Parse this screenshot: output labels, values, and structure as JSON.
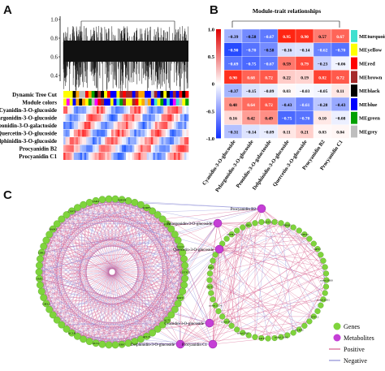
{
  "panels": {
    "a": "A",
    "b": "B",
    "c": "C"
  },
  "panel_a": {
    "yticks": [
      "1.0",
      "0.8",
      "0.6",
      "0.4"
    ],
    "row_labels": [
      "Dynamic Tree Cut",
      "Module colors",
      "Cyanidin-3-O-glucoside",
      "Pelargonidin-3-O-glucoside",
      "Peonidin-3-O-galactoside",
      "Quercetin-3-O-glucoside",
      "Delphinidin-3-O-glucoside",
      "Procyanidin B2",
      "Procyanidin C1"
    ]
  },
  "chart_data": [
    {
      "type": "heatmap",
      "title": "Module-trait relationships",
      "rows": [
        "MEturquoise",
        "MEyellow",
        "MEred",
        "MEbrown",
        "MEblack",
        "MEblue",
        "MEgreen",
        "MEgrey"
      ],
      "row_colors": [
        "#40e0d0",
        "#ffff00",
        "#ff0000",
        "#a52a2a",
        "#000000",
        "#0000ff",
        "#00a000",
        "#bebebe"
      ],
      "columns": [
        "Cyanidin-3-O-glucoside",
        "Pelargonidin-3-O-glucoside",
        "Peonidin-3-O-galactoside",
        "Delphinidin-3-O-glucoside",
        "Quercetin-3-O-glucoside",
        "Procyanidin B2",
        "Procyanidin C1"
      ],
      "values": [
        [
          -0.39,
          -0.58,
          -0.67,
          0.95,
          0.9,
          0.57,
          0.67
        ],
        [
          -0.9,
          -0.7,
          -0.58,
          -0.16,
          -0.14,
          -0.62,
          -0.7
        ],
        [
          -0.69,
          -0.75,
          -0.67,
          0.59,
          0.79,
          -0.23,
          -0.06
        ],
        [
          0.9,
          0.68,
          0.72,
          0.22,
          0.19,
          0.82,
          0.72
        ],
        [
          -0.37,
          -0.15,
          -0.09,
          0.03,
          -0.03,
          -0.05,
          0.11
        ],
        [
          0.48,
          0.64,
          0.72,
          -0.43,
          -0.61,
          -0.28,
          -0.43
        ],
        [
          0.16,
          0.42,
          0.49,
          -0.75,
          -0.7,
          0.1,
          -0.08
        ],
        [
          -0.31,
          -0.14,
          -0.09,
          0.11,
          0.21,
          0.03,
          0.04
        ]
      ],
      "colorbar_ticks": [
        "1.0",
        "0.5",
        "0",
        "-0.5",
        "-1.0"
      ],
      "colorbar_range": [
        -1,
        1
      ]
    }
  ],
  "panel_c": {
    "metabolite_labels": [
      "Procyanidin B2",
      "Pelargonidin-3-O-glucoside",
      "Quercetin-3-O-glucoside",
      "Cyanidin-3-O-glucoside",
      "Delphinidin-3-O-glucoside",
      "Procyanidin C1"
    ],
    "left_gene_labels": [
      "GH3.1",
      "SMS",
      "CPR1",
      "BAM1",
      "CYP70",
      "JAR4",
      "SORF4",
      "SORF5",
      "PTPA",
      "novel.1",
      "GSTF12",
      "KMT1",
      "ALT2",
      "ATL55",
      "ERF",
      "OLS1",
      "ACLB"
    ],
    "right_gene_labels": [
      "novel.9200",
      "novel.6101",
      "GSTF12",
      "GLRS2",
      "novel.3164",
      "AKT",
      "novel.582",
      "novel.692",
      "novel.1154",
      "UGT1",
      "PAT1",
      "PAL2",
      "MYB17",
      "SDC2",
      "GALT2",
      "PPAR1",
      "VPS32",
      "SPT1"
    ],
    "legend": {
      "genes": "Genes",
      "metabolites": "Metabolites",
      "positive": "Positive",
      "negative": "Negative"
    },
    "colors": {
      "gene": "#7fd43c",
      "metabolite": "#c53fd6",
      "positive": "#d65a8c",
      "negative": "#8b8bd6"
    }
  }
}
